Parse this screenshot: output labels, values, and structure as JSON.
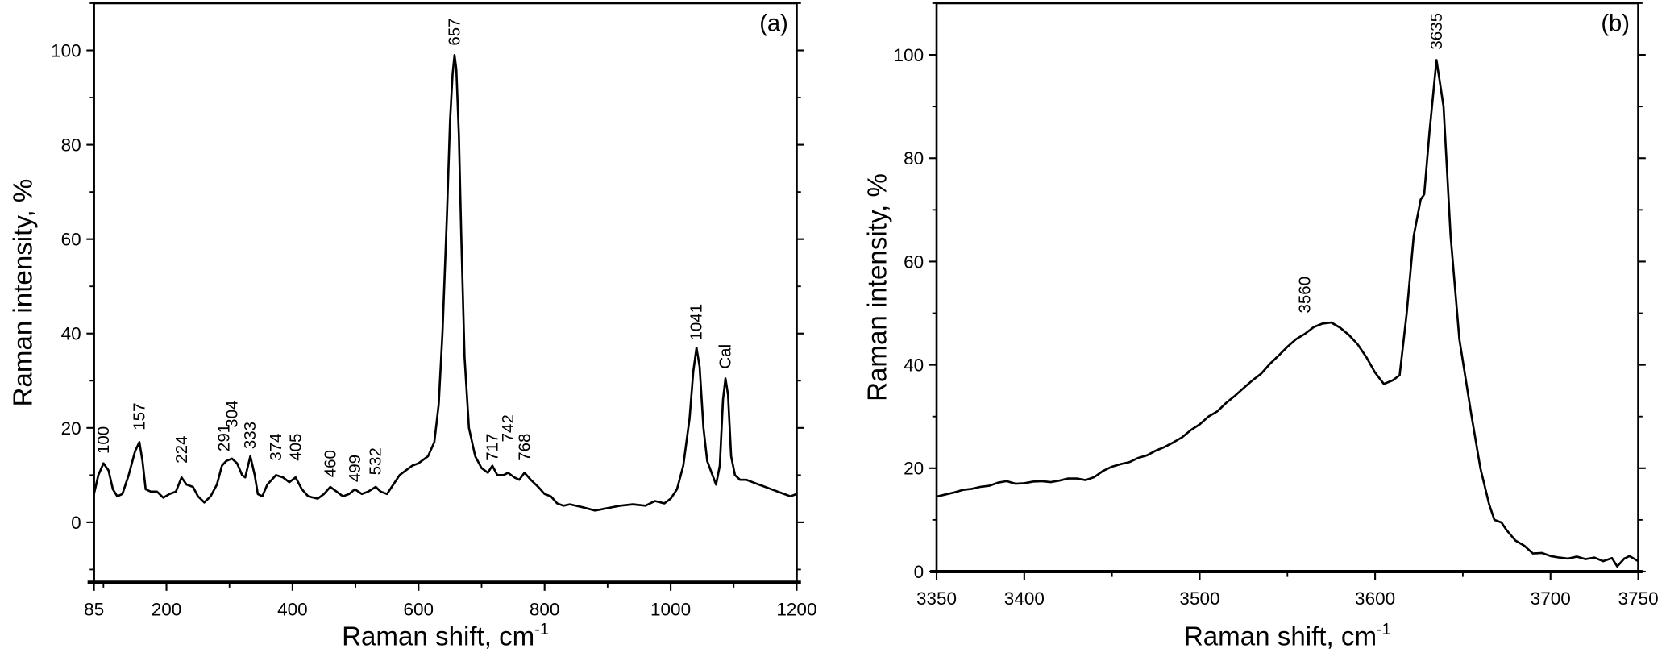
{
  "chart_data": [
    {
      "type": "line",
      "panel_label": "(a)",
      "xlabel": "Raman shift, cm",
      "xlabel_sup": "-1",
      "ylabel": "Raman intensity, %",
      "xlim": [
        85,
        1200
      ],
      "ylim": [
        -12.7,
        110
      ],
      "xticks": [
        85,
        200,
        400,
        600,
        800,
        1000,
        1200
      ],
      "xminor": [
        100,
        300,
        500,
        700,
        900,
        1100
      ],
      "yticks": [
        0,
        20,
        40,
        60,
        80,
        100
      ],
      "yminor": [
        -10,
        10,
        30,
        50,
        70,
        90,
        110
      ],
      "grid": false,
      "x": [
        85,
        92,
        100,
        108,
        115,
        122,
        130,
        140,
        150,
        157,
        162,
        167,
        175,
        185,
        195,
        205,
        215,
        224,
        232,
        242,
        250,
        260,
        270,
        280,
        288,
        295,
        304,
        312,
        320,
        325,
        333,
        340,
        345,
        352,
        360,
        374,
        385,
        395,
        405,
        415,
        425,
        440,
        450,
        460,
        470,
        480,
        490,
        499,
        510,
        520,
        532,
        540,
        550,
        560,
        570,
        580,
        590,
        600,
        615,
        625,
        632,
        638,
        645,
        650,
        654,
        657,
        660,
        664,
        668,
        673,
        680,
        690,
        700,
        710,
        717,
        725,
        735,
        742,
        752,
        760,
        768,
        778,
        790,
        800,
        810,
        820,
        830,
        840,
        860,
        880,
        900,
        920,
        940,
        960,
        975,
        990,
        1000,
        1010,
        1020,
        1030,
        1036,
        1041,
        1046,
        1052,
        1058,
        1065,
        1072,
        1078,
        1083,
        1087,
        1091,
        1096,
        1102,
        1110,
        1120,
        1130,
        1140,
        1150,
        1160,
        1170,
        1180,
        1190,
        1200
      ],
      "y": [
        6,
        10,
        12.5,
        11,
        7,
        5.5,
        6,
        10,
        15,
        17,
        13,
        7,
        6.5,
        6.5,
        5.2,
        6,
        6.5,
        9.5,
        8,
        7.5,
        5.5,
        4.2,
        5.5,
        8,
        12,
        13,
        13.5,
        12.5,
        10,
        9.5,
        14,
        10,
        6,
        5.5,
        8,
        10,
        9.5,
        8.5,
        9.5,
        7,
        5.5,
        5,
        6,
        7.5,
        6.5,
        5.5,
        6,
        7,
        6,
        6.5,
        7.5,
        6.5,
        6,
        8,
        10,
        11,
        12,
        12.5,
        14,
        17,
        25,
        40,
        65,
        85,
        95,
        99,
        96,
        82,
        60,
        35,
        20,
        14,
        11.5,
        10.5,
        12,
        10,
        10,
        10.5,
        9.5,
        9,
        10.5,
        9,
        7.5,
        6,
        5.5,
        4,
        3.5,
        3.8,
        3.2,
        2.5,
        3,
        3.5,
        3.8,
        3.5,
        4.5,
        4,
        5,
        7,
        12,
        22,
        32,
        37,
        33,
        20,
        13,
        10.5,
        8,
        12,
        26,
        30.5,
        27,
        14,
        10,
        9,
        9,
        8.5,
        8,
        7.5,
        7,
        6.5,
        6,
        5.5,
        6
      ],
      "annotations": [
        {
          "text": "100",
          "x": 100,
          "y": 14.5
        },
        {
          "text": "157",
          "x": 157,
          "y": 19.5
        },
        {
          "text": "224",
          "x": 224,
          "y": 12.5
        },
        {
          "text": "291",
          "x": 291,
          "y": 15
        },
        {
          "text": "304",
          "x": 304,
          "y": 20
        },
        {
          "text": "333",
          "x": 333,
          "y": 15.5
        },
        {
          "text": "374",
          "x": 374,
          "y": 13
        },
        {
          "text": "405",
          "x": 405,
          "y": 13
        },
        {
          "text": "460",
          "x": 460,
          "y": 9.5
        },
        {
          "text": "499",
          "x": 499,
          "y": 8.5
        },
        {
          "text": "532",
          "x": 532,
          "y": 10
        },
        {
          "text": "657",
          "x": 657,
          "y": 101
        },
        {
          "text": "717",
          "x": 717,
          "y": 13
        },
        {
          "text": "742",
          "x": 742,
          "y": 17
        },
        {
          "text": "768",
          "x": 768,
          "y": 13
        },
        {
          "text": "1041",
          "x": 1041,
          "y": 38.5
        },
        {
          "text": "Cal",
          "x": 1087,
          "y": 32.5
        }
      ]
    },
    {
      "type": "line",
      "panel_label": "(b)",
      "xlabel": "Raman shift, cm",
      "xlabel_sup": "-1",
      "ylabel": "Raman intensity, %",
      "xlim": [
        3350,
        3750
      ],
      "ylim": [
        0,
        110
      ],
      "xticks": [
        3350,
        3400,
        3500,
        3600,
        3700,
        3750
      ],
      "xminor": [
        3450,
        3550,
        3650
      ],
      "yticks": [
        0,
        20,
        40,
        60,
        80,
        100
      ],
      "yminor": [
        10,
        30,
        50,
        70,
        90,
        110
      ],
      "grid": false,
      "x": [
        3350,
        3355,
        3360,
        3365,
        3370,
        3375,
        3380,
        3385,
        3390,
        3395,
        3400,
        3405,
        3410,
        3415,
        3420,
        3425,
        3430,
        3435,
        3440,
        3445,
        3450,
        3455,
        3460,
        3465,
        3470,
        3475,
        3480,
        3485,
        3490,
        3495,
        3500,
        3505,
        3510,
        3515,
        3520,
        3525,
        3530,
        3535,
        3540,
        3545,
        3550,
        3555,
        3560,
        3565,
        3570,
        3575,
        3580,
        3585,
        3590,
        3595,
        3600,
        3605,
        3610,
        3614,
        3618,
        3622,
        3626,
        3628,
        3631,
        3635,
        3639,
        3643,
        3648,
        3655,
        3660,
        3665,
        3668,
        3672,
        3675,
        3680,
        3685,
        3690,
        3695,
        3700,
        3705,
        3710,
        3715,
        3720,
        3725,
        3730,
        3735,
        3738,
        3742,
        3745,
        3750
      ],
      "y": [
        14.5,
        14.9,
        15.3,
        15.8,
        16,
        16.4,
        16.6,
        17.2,
        17.5,
        17,
        17.1,
        17.4,
        17.5,
        17.3,
        17.6,
        18,
        18,
        17.7,
        18.3,
        19.5,
        20.3,
        20.8,
        21.2,
        22,
        22.5,
        23.4,
        24.1,
        25,
        26,
        27.4,
        28.5,
        30,
        31,
        32.6,
        34,
        35.5,
        37,
        38.3,
        40.2,
        41.8,
        43.5,
        45,
        46,
        47.3,
        48,
        48.2,
        47.2,
        45.8,
        44,
        41.5,
        38.5,
        36.3,
        37,
        38,
        50,
        65,
        72,
        73,
        85,
        99,
        90,
        65,
        45,
        30,
        20,
        13,
        10,
        9.5,
        8,
        6,
        5,
        3.5,
        3.6,
        3,
        2.7,
        2.5,
        2.9,
        2.4,
        2.7,
        2,
        2.6,
        1,
        2.5,
        3,
        2
      ],
      "annotations": [
        {
          "text": "3560",
          "x": 3560,
          "y": 50
        },
        {
          "text": "3635",
          "x": 3635,
          "y": 101
        }
      ]
    }
  ]
}
